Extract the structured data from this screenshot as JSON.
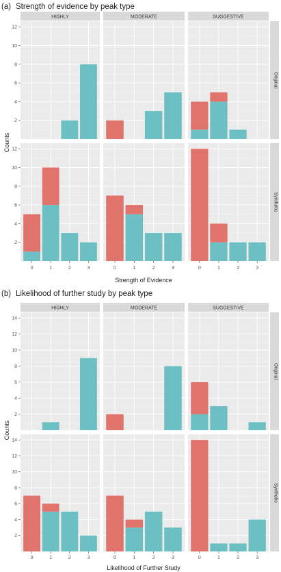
{
  "colors": {
    "panel_bg": "#ebebeb",
    "strip_bg": "#d9d9d9",
    "grid_major": "#ffffff",
    "base_series": "#6cc0c4",
    "stacked_series": "#e0736b",
    "text": "#222222"
  },
  "panels": [
    {
      "label": "(a)",
      "title": "Strength of evidence by peak type",
      "xlabel": "Strength of Evidence",
      "ylabel": "Counts"
    },
    {
      "label": "(b)",
      "title": "Likelihood of further study by peak type",
      "xlabel": "Likelihood of Further Study",
      "ylabel": "Counts"
    }
  ],
  "chart_data": [
    {
      "type": "bar",
      "stacked": true,
      "title": "Strength of evidence by peak type",
      "xlabel": "Strength of Evidence",
      "ylabel": "Counts",
      "column_facets": [
        "HIGHLY",
        "MODERATE",
        "SUGGESTIVE"
      ],
      "row_facets": [
        "Original",
        "Synthetic"
      ],
      "categories": [
        "0",
        "1",
        "2",
        "3"
      ],
      "grid": true,
      "rows": [
        {
          "name": "Original",
          "ylim": [
            0,
            12.6
          ],
          "yticks": [
            2,
            4,
            6,
            8,
            10,
            12
          ],
          "facets": [
            {
              "base": [
                0,
                0,
                2,
                8
              ],
              "stacked": [
                0,
                0,
                0,
                0
              ]
            },
            {
              "base": [
                0,
                0,
                3,
                5
              ],
              "stacked": [
                2,
                0,
                0,
                0
              ]
            },
            {
              "base": [
                1,
                4,
                1,
                0
              ],
              "stacked": [
                3,
                1,
                0,
                0
              ]
            }
          ]
        },
        {
          "name": "Synthetic",
          "ylim": [
            0,
            12.6
          ],
          "yticks": [
            2,
            4,
            6,
            8,
            10,
            12
          ],
          "facets": [
            {
              "base": [
                1,
                6,
                3,
                2
              ],
              "stacked": [
                4,
                4,
                0,
                0
              ]
            },
            {
              "base": [
                0,
                5,
                3,
                3
              ],
              "stacked": [
                7,
                1,
                0,
                0
              ]
            },
            {
              "base": [
                0,
                2,
                2,
                2
              ],
              "stacked": [
                12,
                2,
                0,
                0
              ]
            }
          ]
        }
      ]
    },
    {
      "type": "bar",
      "stacked": true,
      "title": "Likelihood of further study by peak type",
      "xlabel": "Likelihood of Further Study",
      "ylabel": "Counts",
      "column_facets": [
        "HIGHLY",
        "MODERATE",
        "SUGGESTIVE"
      ],
      "row_facets": [
        "Original",
        "Synthetic"
      ],
      "categories": [
        "0",
        "1",
        "2",
        "3"
      ],
      "grid": true,
      "rows": [
        {
          "name": "Original",
          "ylim": [
            0,
            14.7
          ],
          "yticks": [
            2,
            4,
            6,
            8,
            10,
            12,
            14
          ],
          "facets": [
            {
              "base": [
                0,
                1,
                0,
                9
              ],
              "stacked": [
                0,
                0,
                0,
                0
              ]
            },
            {
              "base": [
                0,
                0,
                0,
                8
              ],
              "stacked": [
                2,
                0,
                0,
                0
              ]
            },
            {
              "base": [
                2,
                3,
                0,
                1
              ],
              "stacked": [
                4,
                0,
                0,
                0
              ]
            }
          ]
        },
        {
          "name": "Synthetic",
          "ylim": [
            0,
            14.7
          ],
          "yticks": [
            2,
            4,
            6,
            8,
            10,
            12,
            14
          ],
          "facets": [
            {
              "base": [
                0,
                5,
                5,
                2
              ],
              "stacked": [
                7,
                1,
                0,
                0
              ]
            },
            {
              "base": [
                0,
                3,
                5,
                3
              ],
              "stacked": [
                7,
                1,
                0,
                0
              ]
            },
            {
              "base": [
                0,
                1,
                1,
                4
              ],
              "stacked": [
                14,
                0,
                0,
                0
              ]
            }
          ]
        }
      ]
    }
  ]
}
